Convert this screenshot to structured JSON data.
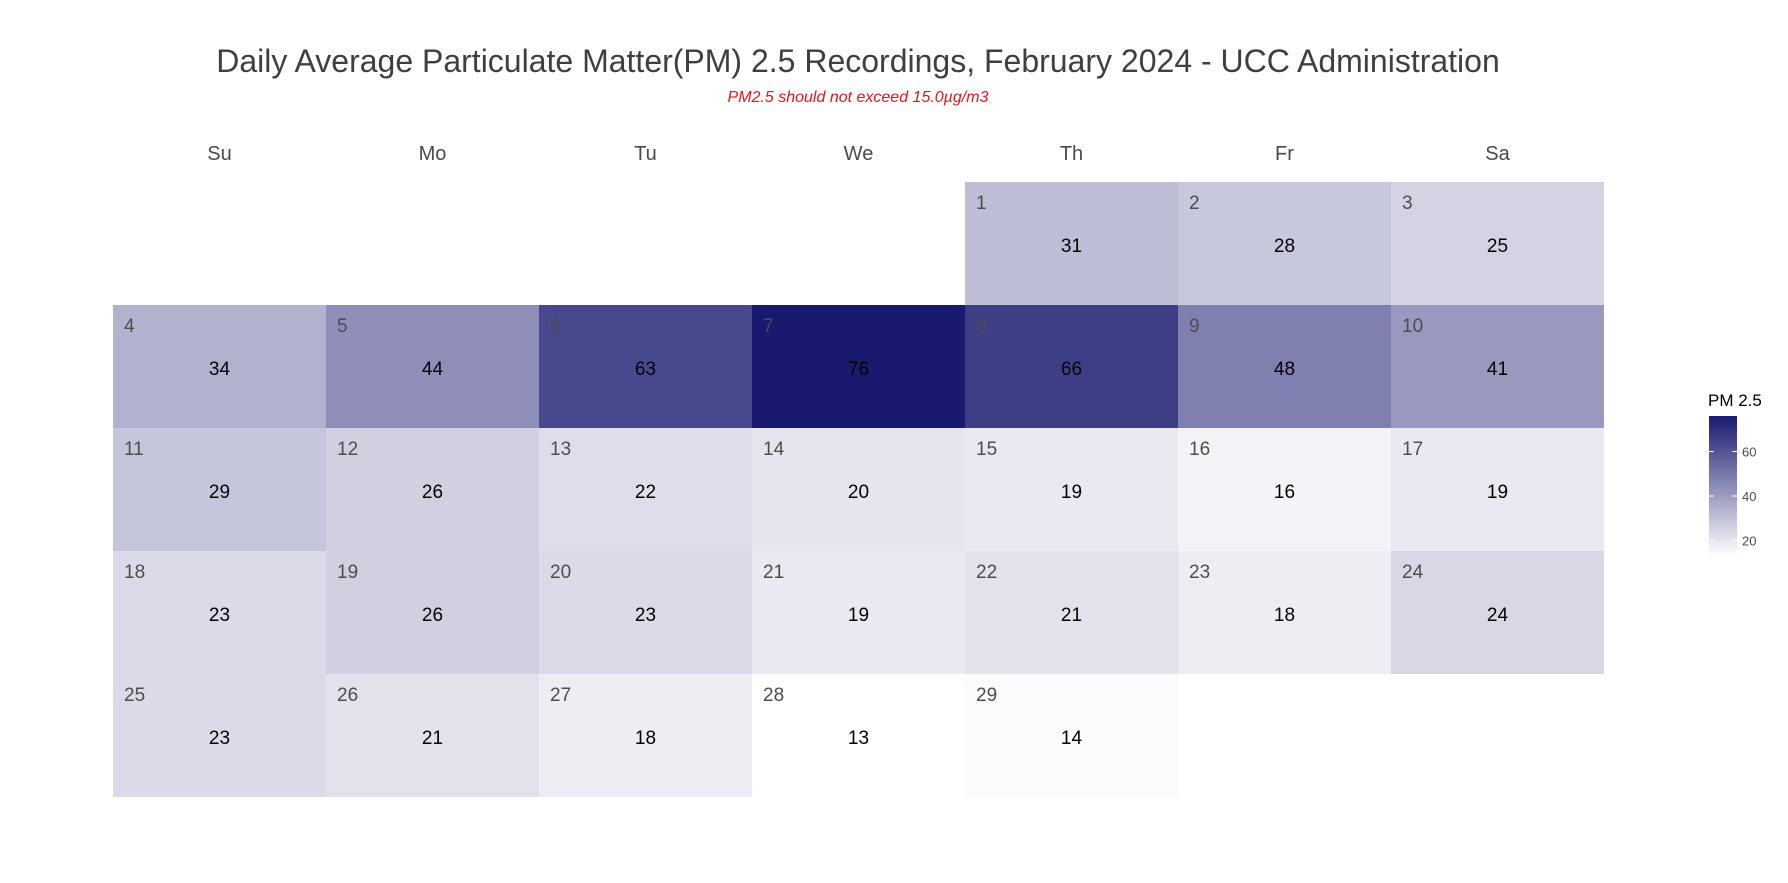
{
  "chart_data": {
    "type": "heatmap",
    "title": "Daily Average Particulate Matter(PM) 2.5 Recordings, February 2024 - UCC Administration",
    "subtitle": "PM2.5 should not exceed 15.0µg/m3",
    "weekdays": [
      "Su",
      "Mo",
      "Tu",
      "We",
      "Th",
      "Fr",
      "Sa"
    ],
    "first_weekday_index": 4,
    "days": [
      1,
      2,
      3,
      4,
      5,
      6,
      7,
      8,
      9,
      10,
      11,
      12,
      13,
      14,
      15,
      16,
      17,
      18,
      19,
      20,
      21,
      22,
      23,
      24,
      25,
      26,
      27,
      28,
      29
    ],
    "values": [
      31,
      28,
      25,
      34,
      44,
      63,
      76,
      66,
      48,
      41,
      29,
      26,
      22,
      20,
      19,
      16,
      19,
      23,
      26,
      23,
      19,
      21,
      18,
      24,
      23,
      21,
      18,
      13,
      14
    ],
    "legend": {
      "title": "PM 2.5",
      "ticks": [
        20,
        40,
        60
      ],
      "range": [
        13,
        76
      ],
      "low_color": "#ffffff",
      "high_color": "#191970"
    },
    "colors": {
      "subtitle": "#e8141c"
    }
  }
}
